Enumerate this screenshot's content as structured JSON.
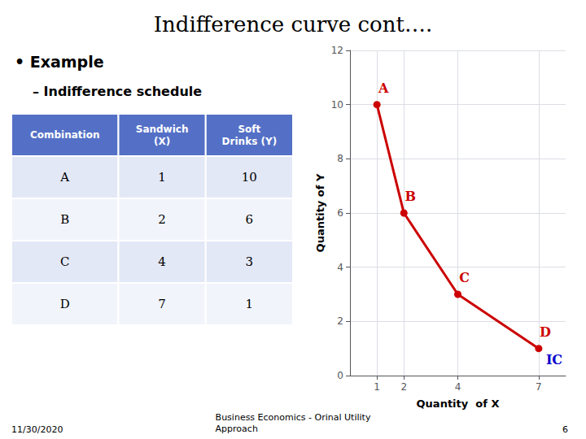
{
  "chart_data": {
    "type": "line",
    "title": "Indifference curve cont….",
    "bullet": "• Example",
    "sub_bullet": "– Indifference schedule",
    "table": {
      "headers": [
        "Combination",
        "Sandwich\n(X)",
        "Soft\nDrinks (Y)"
      ],
      "rows": [
        [
          "A",
          "1",
          "10"
        ],
        [
          "B",
          "2",
          "6"
        ],
        [
          "C",
          "4",
          "3"
        ],
        [
          "D",
          "7",
          "1"
        ]
      ]
    },
    "x": [
      1,
      2,
      4,
      7
    ],
    "values": [
      10,
      6,
      3,
      1
    ],
    "point_labels": [
      "A",
      "B",
      "C",
      "D"
    ],
    "color": "#cc0000",
    "marker": "circle",
    "line_style": "solid",
    "curve_label": {
      "text": "IC",
      "color": "#0000cc"
    },
    "xlabel": "Quantity  of X",
    "ylabel": "Quantity of Y",
    "xlim": [
      0,
      8
    ],
    "ylim": [
      0,
      12
    ],
    "xticks": [
      1,
      2,
      4,
      7
    ],
    "yticks": [
      0,
      2,
      4,
      6,
      8,
      10,
      12
    ],
    "grid": true,
    "footer": {
      "left": "11/30/2020",
      "center": "Business Economics - Orinal Utility\nApproach",
      "right": "6"
    }
  }
}
